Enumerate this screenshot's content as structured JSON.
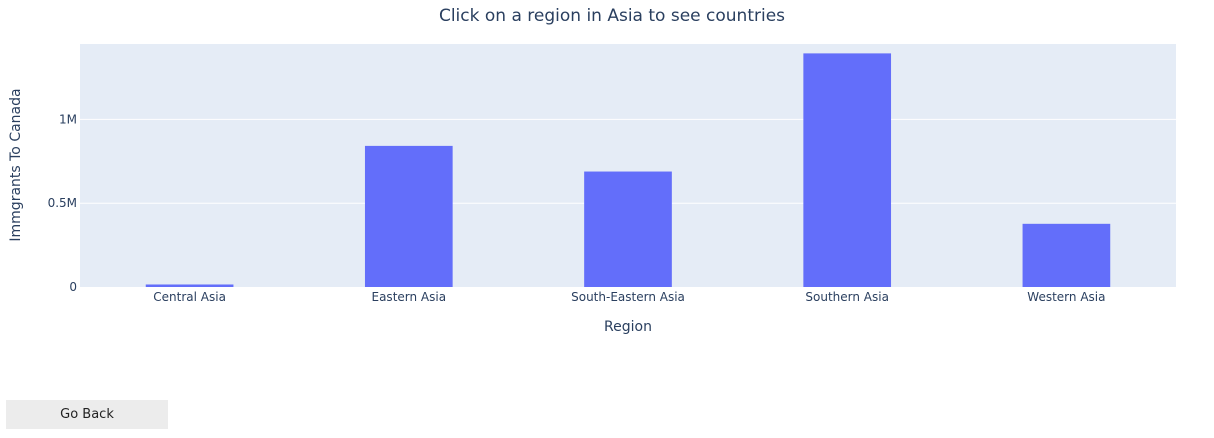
{
  "chart_data": {
    "type": "bar",
    "title": "Click on a region in Asia to see countries",
    "xlabel": "Region",
    "ylabel": "Immgrants To Canada",
    "categories": [
      "Central Asia",
      "Eastern Asia",
      "South-Eastern Asia",
      "Southern Asia",
      "Western Asia"
    ],
    "values": [
      15000,
      842000,
      689000,
      1394000,
      377000
    ],
    "ylim": [
      0,
      1450000
    ],
    "yticks": [
      {
        "value": 0,
        "label": "0"
      },
      {
        "value": 500000,
        "label": "0.5M"
      },
      {
        "value": 1000000,
        "label": "1M"
      }
    ],
    "bar_color": "#636efa",
    "plot_bg": "#e5ecf6"
  },
  "controls": {
    "go_back_label": "Go Back"
  }
}
